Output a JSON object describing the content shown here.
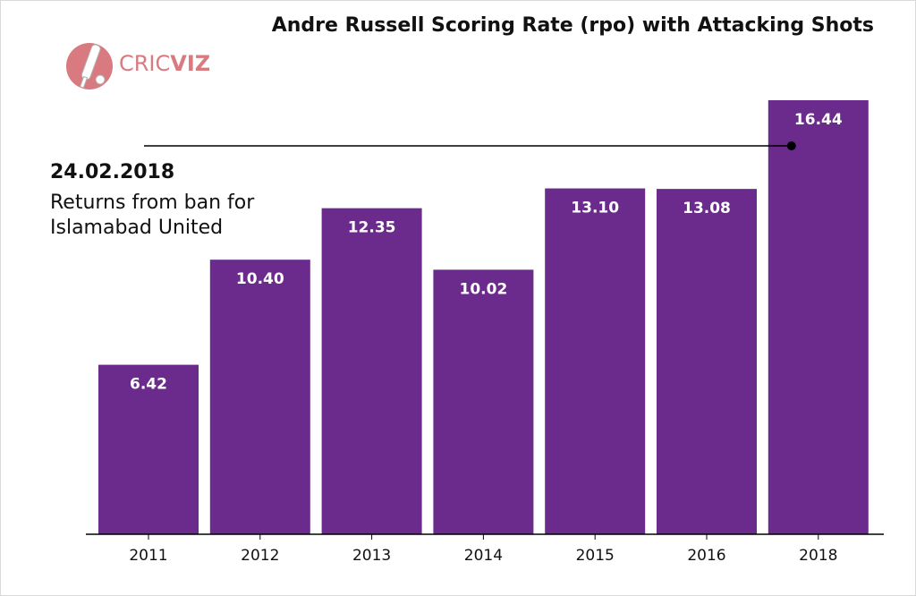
{
  "header": {
    "title": "Andre Russell Scoring Rate (rpo) with Attacking Shots"
  },
  "logo": {
    "text_light": "CRIC",
    "text_bold": "VIZ",
    "icon": "cricket-bat-ball-icon",
    "color": "#d87a80"
  },
  "annotation": {
    "date": "24.02.2018",
    "text": "Returns from ban for Islamabad United",
    "marker_color": "#000000"
  },
  "colors": {
    "bar": "#6a2b8c",
    "axis": "#000000"
  },
  "chart_data": {
    "type": "bar",
    "title": "Andre Russell Scoring Rate (rpo) with Attacking Shots",
    "xlabel": "",
    "ylabel": "",
    "categories": [
      "2011",
      "2012",
      "2013",
      "2014",
      "2015",
      "2016",
      "2018"
    ],
    "values": [
      6.42,
      10.4,
      12.35,
      10.02,
      13.1,
      13.08,
      16.44
    ],
    "value_labels": [
      "6.42",
      "10.40",
      "12.35",
      "10.02",
      "13.10",
      "13.08",
      "16.44"
    ],
    "ylim": [
      0,
      16.44
    ],
    "grid": false,
    "legend": "none"
  }
}
